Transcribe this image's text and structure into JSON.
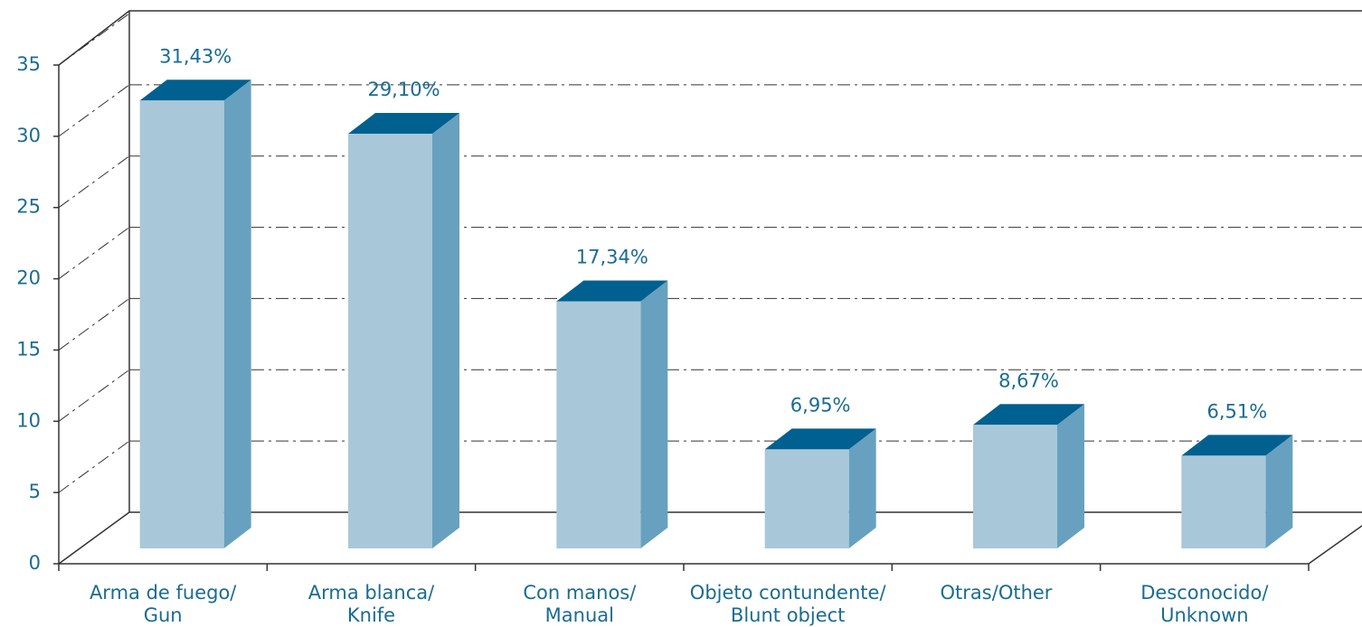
{
  "chart_data": {
    "type": "bar3d",
    "categories": [
      [
        "Arma de fuego/",
        "Gun"
      ],
      [
        "Arma blanca/",
        "Knife"
      ],
      [
        "Con manos/",
        "Manual"
      ],
      [
        "Objeto contundente/",
        "Blunt object"
      ],
      [
        "Otras/Other"
      ],
      [
        "Desconocido/",
        "Unknown"
      ]
    ],
    "values": [
      31.43,
      29.1,
      17.34,
      6.95,
      8.67,
      6.51
    ],
    "value_labels": [
      "31,43%",
      "29,10%",
      "17,34%",
      "6,95%",
      "8,67%",
      "6,51%"
    ],
    "colors": {
      "front": "#a8c8d9",
      "side": "#67a1bf",
      "top": "#00608f"
    },
    "ylim": [
      0,
      35
    ],
    "yticks": [
      0,
      5,
      10,
      15,
      20,
      25,
      30,
      35
    ],
    "grid": true
  }
}
